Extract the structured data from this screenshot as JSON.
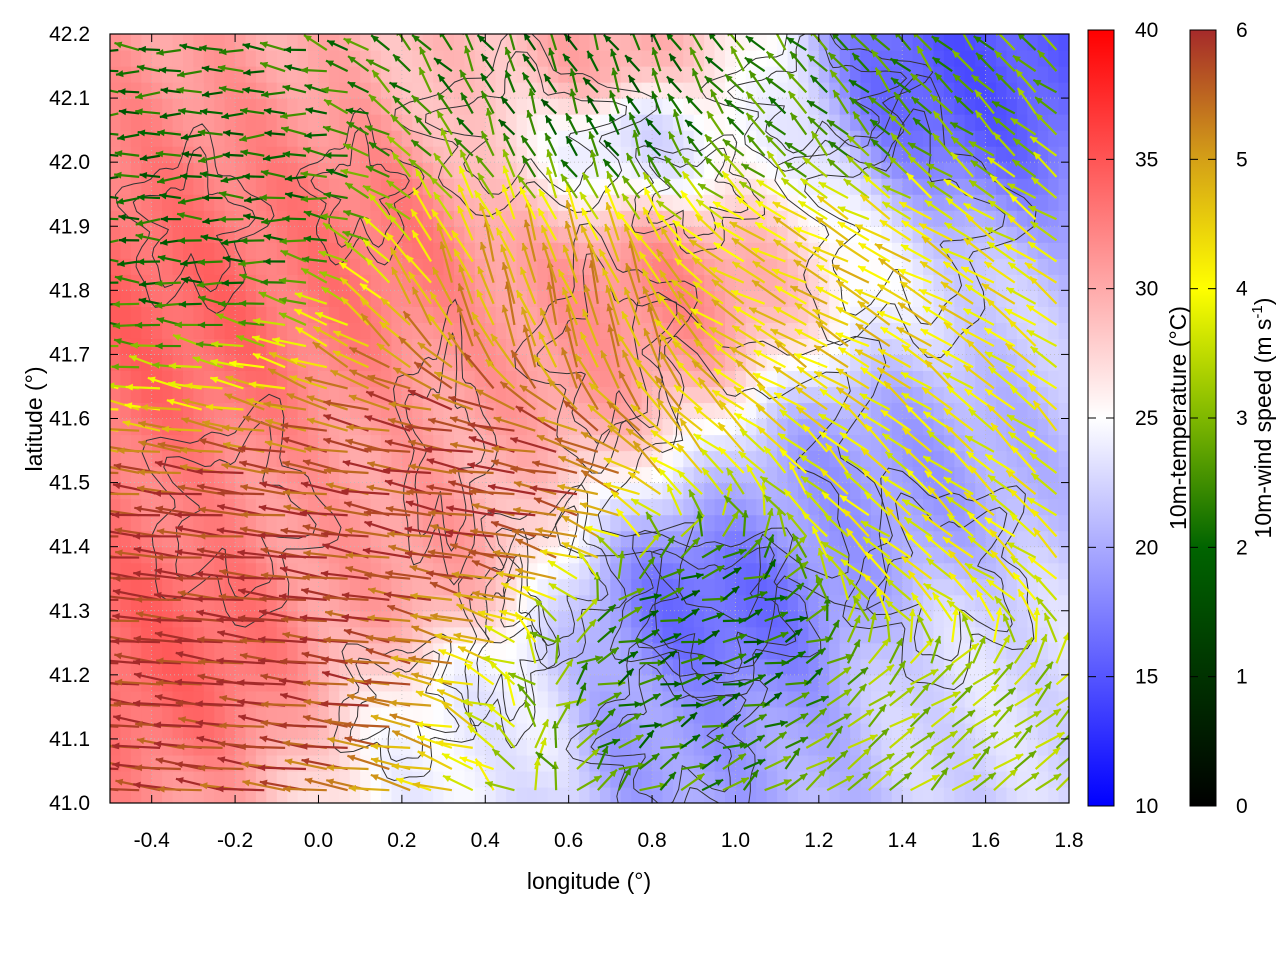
{
  "chart_data": {
    "type": "heatmap",
    "title": "",
    "xlabel": "longitude (°)",
    "ylabel": "latitude (°)",
    "xlim": [
      -0.5,
      1.8
    ],
    "ylim": [
      41.0,
      42.2
    ],
    "xticks": [
      -0.4,
      -0.2,
      0.0,
      0.2,
      0.4,
      0.6,
      0.8,
      1.0,
      1.2,
      1.4,
      1.6,
      1.8
    ],
    "xtick_labels": [
      "-0.4",
      "-0.2",
      "0.0",
      "0.2",
      "0.4",
      "0.6",
      "0.8",
      "1.0",
      "1.2",
      "1.4",
      "1.6",
      "1.8"
    ],
    "yticks": [
      41.0,
      41.1,
      41.2,
      41.3,
      41.4,
      41.5,
      41.6,
      41.7,
      41.8,
      41.9,
      42.0,
      42.1,
      42.2
    ],
    "ytick_labels": [
      "41.0",
      "41.1",
      "41.2",
      "41.3",
      "41.4",
      "41.5",
      "41.6",
      "41.7",
      "41.8",
      "41.9",
      "42.0",
      "42.1",
      "42.2"
    ],
    "grid": true,
    "layers": [
      {
        "kind": "heatmap",
        "field": "10m-temperature",
        "units": "°C"
      },
      {
        "kind": "vectors",
        "field": "10m-wind",
        "units": "m s-1"
      },
      {
        "kind": "contours",
        "field": "terrain"
      }
    ],
    "colorbars": [
      {
        "name": "temperature",
        "label_main": "10m-temperature (",
        "label_unit": "°C",
        "label_close": ")",
        "range": [
          10,
          40
        ],
        "ticks": [
          10,
          15,
          20,
          25,
          30,
          35,
          40
        ],
        "tick_labels": [
          "10",
          "15",
          "20",
          "25",
          "30",
          "35",
          "40"
        ],
        "colors": [
          {
            "value": 10,
            "color": "#0000ff"
          },
          {
            "value": 25,
            "color": "#ffffff"
          },
          {
            "value": 40,
            "color": "#ff0000"
          }
        ]
      },
      {
        "name": "wind-speed",
        "label_main": "10m-wind speed (m s",
        "label_sup": "-1",
        "label_close": ")",
        "range": [
          0,
          6
        ],
        "ticks": [
          0,
          1,
          2,
          3,
          4,
          5,
          6
        ],
        "tick_labels": [
          "0",
          "1",
          "2",
          "3",
          "4",
          "5",
          "6"
        ],
        "colors": [
          {
            "value": 0,
            "color": "#000000"
          },
          {
            "value": 2,
            "color": "#006400"
          },
          {
            "value": 3,
            "color": "#7fb800"
          },
          {
            "value": 4,
            "color": "#ffff00"
          },
          {
            "value": 5,
            "color": "#d4a017"
          },
          {
            "value": 6,
            "color": "#a52a2a"
          }
        ]
      }
    ],
    "temperature_features": [
      {
        "lon": -0.35,
        "lat": 41.25,
        "temp": 34
      },
      {
        "lon": -0.35,
        "lat": 41.75,
        "temp": 34
      },
      {
        "lon": 0.1,
        "lat": 41.85,
        "temp": 33
      },
      {
        "lon": 0.7,
        "lat": 42.15,
        "temp": 31
      },
      {
        "lon": 0.55,
        "lat": 41.7,
        "temp": 31
      },
      {
        "lon": 0.8,
        "lat": 41.8,
        "temp": 32
      },
      {
        "lon": 0.2,
        "lat": 41.4,
        "temp": 31
      },
      {
        "lon": 0.95,
        "lat": 41.3,
        "temp": 16
      },
      {
        "lon": 0.8,
        "lat": 41.1,
        "temp": 19
      },
      {
        "lon": 1.3,
        "lat": 41.5,
        "temp": 19
      },
      {
        "lon": 1.55,
        "lat": 42.15,
        "temp": 15
      },
      {
        "lon": 0.75,
        "lat": 42.05,
        "temp": 22
      },
      {
        "lon": 0.45,
        "lat": 41.1,
        "temp": 24
      },
      {
        "lon": 1.6,
        "lat": 41.2,
        "temp": 23
      }
    ],
    "wind_regimes": [
      {
        "lon": -0.2,
        "lat": 41.3,
        "u": -3.0,
        "v": 0.3,
        "speed": 6
      },
      {
        "lon": 0.4,
        "lat": 41.5,
        "u": -2.5,
        "v": 0.4,
        "speed": 5.8
      },
      {
        "lon": 0.6,
        "lat": 41.75,
        "u": -0.6,
        "v": 2.0,
        "speed": 5
      },
      {
        "lon": 1.2,
        "lat": 41.8,
        "u": -2.2,
        "v": 1.2,
        "speed": 4.5
      },
      {
        "lon": 1.5,
        "lat": 41.4,
        "u": -1.5,
        "v": 1.2,
        "speed": 4
      },
      {
        "lon": 1.5,
        "lat": 41.1,
        "u": 1.2,
        "v": 0.9,
        "speed": 3.2
      },
      {
        "lon": -0.3,
        "lat": 41.95,
        "u": -1.5,
        "v": 0.0,
        "speed": 2
      },
      {
        "lon": 0.7,
        "lat": 42.1,
        "u": -0.5,
        "v": 1.0,
        "speed": 2
      },
      {
        "lon": 1.2,
        "lat": 42.1,
        "u": -1.0,
        "v": 1.0,
        "speed": 2.5
      },
      {
        "lon": 0.95,
        "lat": 41.25,
        "u": 1.0,
        "v": 0.3,
        "speed": 2
      }
    ]
  }
}
